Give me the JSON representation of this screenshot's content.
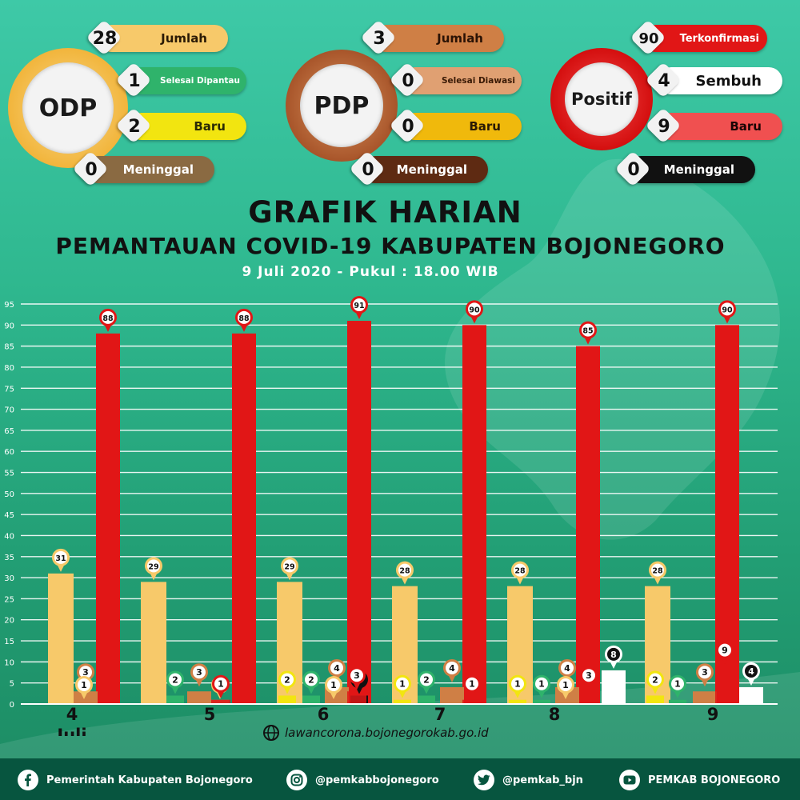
{
  "colors": {
    "odp": "#f7c96a",
    "selesai": "#2fb36b",
    "baru_yellow": "#f2e510",
    "pdp": "#cf7f45",
    "positif": "#e11616",
    "sembuh": "#ffffff",
    "meninggal": "#111111"
  },
  "odp": {
    "label": "ODP",
    "jumlah": {
      "value": "28",
      "label": "Jumlah"
    },
    "selesai": {
      "value": "1",
      "label": "Selesai Dipantau"
    },
    "baru": {
      "value": "2",
      "label": "Baru"
    },
    "meninggal": {
      "value": "0",
      "label": "Meninggal"
    }
  },
  "pdp": {
    "label": "PDP",
    "jumlah": {
      "value": "3",
      "label": "Jumlah"
    },
    "selesai": {
      "value": "0",
      "label": "Selesai Diawasi"
    },
    "baru": {
      "value": "0",
      "label": "Baru"
    },
    "meninggal": {
      "value": "0",
      "label": "Meninggal"
    }
  },
  "positif": {
    "label": "Positif",
    "terkonfirmasi": {
      "value": "90",
      "label": "Terkonfirmasi"
    },
    "sembuh": {
      "value": "4",
      "label": "Sembuh"
    },
    "baru": {
      "value": "9",
      "label": "Baru"
    },
    "meninggal": {
      "value": "0",
      "label": "Meninggal"
    }
  },
  "title": {
    "line1": "GRAFIK HARIAN",
    "line2": "PEMANTAUAN COVID-19 KABUPATEN BOJONEGORO",
    "line3": "9 Juli 2020 - Pukul : 18.00 WIB"
  },
  "chart_data": {
    "type": "bar",
    "ylim": [
      0,
      95
    ],
    "yticks": [
      0,
      5,
      10,
      15,
      20,
      25,
      30,
      35,
      40,
      45,
      50,
      55,
      60,
      65,
      70,
      75,
      80,
      85,
      90,
      95
    ],
    "grid": true,
    "categories": [
      "4",
      "5",
      "6",
      "7",
      "8",
      "9"
    ],
    "month_label": "Juli",
    "series": [
      {
        "key": "odp",
        "values": [
          31,
          29,
          29,
          28,
          28,
          28
        ]
      },
      {
        "key": "baru_odp",
        "values": [
          0,
          0,
          2,
          1,
          1,
          2
        ]
      },
      {
        "key": "selesai",
        "values": [
          0,
          2,
          2,
          2,
          1,
          1
        ]
      },
      {
        "key": "pdp",
        "values": [
          3,
          3,
          4,
          4,
          4,
          3
        ]
      },
      {
        "key": "baru_pdp",
        "values": [
          1,
          1,
          1,
          0,
          1,
          0
        ]
      },
      {
        "key": "meninggal",
        "values": [
          0,
          0,
          2,
          0,
          0,
          0
        ]
      },
      {
        "key": "baru_positif",
        "values": [
          0,
          1,
          3,
          1,
          3,
          9
        ]
      },
      {
        "key": "positif",
        "values": [
          88,
          88,
          91,
          90,
          85,
          90
        ]
      },
      {
        "key": "sembuh",
        "values": [
          0,
          0,
          0,
          0,
          8,
          4
        ]
      }
    ]
  },
  "footer": {
    "website": "lawancorona.bojonegorokab.go.id",
    "facebook": "Pemerintah Kabupaten Bojonegoro",
    "instagram": "@pemkabbojonegoro",
    "twitter": "@pemkab_bjn",
    "youtube": "PEMKAB BOJONEGORO"
  }
}
